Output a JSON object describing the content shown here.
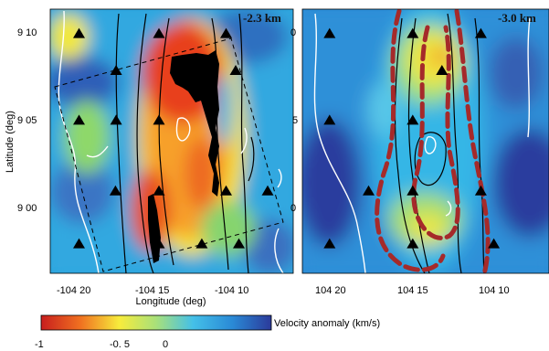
{
  "chart_data": [
    {
      "type": "heatmap",
      "panel": "left",
      "depth_label": "-2.3 km",
      "xlabel": "Longitude (deg)",
      "ylabel": "Latitude (deg)",
      "x_ticks": [
        "-104 20",
        "-104 15",
        "-104 10"
      ],
      "y_ticks": [
        "9 10",
        "9 05",
        "9 00"
      ],
      "stations": [
        {
          "lon": -104.375,
          "lat": 9.162
        },
        {
          "lon": -104.25,
          "lat": 9.162
        },
        {
          "lon": -104.145,
          "lat": 9.162
        },
        {
          "lon": -104.317,
          "lat": 9.127
        },
        {
          "lon": -104.13,
          "lat": 9.127
        },
        {
          "lon": -104.375,
          "lat": 9.08
        },
        {
          "lon": -104.317,
          "lat": 9.08
        },
        {
          "lon": -104.25,
          "lat": 9.08
        },
        {
          "lon": -104.318,
          "lat": 9.013
        },
        {
          "lon": -104.25,
          "lat": 9.013
        },
        {
          "lon": -104.145,
          "lat": 9.013
        },
        {
          "lon": -104.08,
          "lat": 9.013
        },
        {
          "lon": -104.375,
          "lat": 8.963
        },
        {
          "lon": -104.25,
          "lat": 8.963
        },
        {
          "lon": -104.183,
          "lat": 8.963
        },
        {
          "lon": -104.125,
          "lat": 8.963
        }
      ]
    },
    {
      "type": "heatmap",
      "panel": "right",
      "depth_label": "-3.0 km",
      "x_ticks": [
        "104 20",
        "104 15",
        "104 10"
      ],
      "y_ticks_partial": [
        "0",
        "5"
      ],
      "stations": [
        {
          "lon": -104.378,
          "lat": 9.162
        },
        {
          "lon": -104.25,
          "lat": 9.162
        },
        {
          "lon": -104.145,
          "lat": 9.162
        },
        {
          "lon": -104.205,
          "lat": 9.127
        },
        {
          "lon": -104.378,
          "lat": 9.08
        },
        {
          "lon": -104.25,
          "lat": 9.08
        },
        {
          "lon": -104.318,
          "lat": 9.013
        },
        {
          "lon": -104.25,
          "lat": 9.013
        },
        {
          "lon": -104.145,
          "lat": 9.013
        },
        {
          "lon": -104.378,
          "lat": 8.963
        },
        {
          "lon": -104.25,
          "lat": 8.963
        },
        {
          "lon": -104.125,
          "lat": 8.963
        }
      ]
    }
  ],
  "colorbar": {
    "label": "Velocity anomaly (km/s)",
    "tick_labels": [
      "-1",
      "-0. 5",
      "0"
    ],
    "range": [
      -1,
      0
    ],
    "colors": [
      "#c81e1e",
      "#f07020",
      "#f7ec3c",
      "#a8e07a",
      "#44c0e8",
      "#2a8ad6",
      "#2b3a9a"
    ]
  }
}
